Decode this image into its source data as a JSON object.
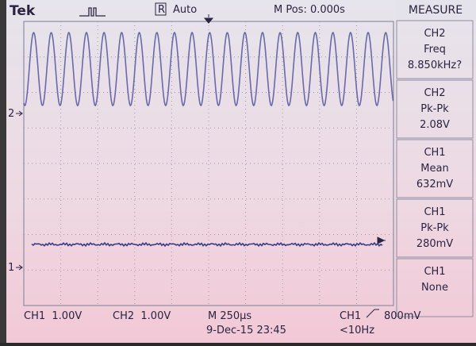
{
  "header": {
    "brand": "Tek",
    "trigger_mode": "R",
    "acquisition": "Auto",
    "position": "M Pos: 0.000s"
  },
  "measure": {
    "title": "MEASURE",
    "items": [
      {
        "source": "CH2",
        "label": "Freq",
        "value": "8.850kHz?"
      },
      {
        "source": "CH2",
        "label": "Pk-Pk",
        "value": "2.08V"
      },
      {
        "source": "CH1",
        "label": "Mean",
        "value": "632mV"
      },
      {
        "source": "CH1",
        "label": "Pk-Pk",
        "value": "280mV"
      },
      {
        "source": "CH1",
        "label": "None"
      }
    ]
  },
  "markers": {
    "ch2": "2",
    "ch1": "1"
  },
  "footer": {
    "ch1_scale": "CH1  1.00V",
    "ch2_scale": "CH2  1.00V",
    "timebase": "M 250µs",
    "trigger_source": "CH1",
    "trigger_level": "800mV",
    "datetime": "9-Dec-15 23:45",
    "trigger_freq": "<10Hz"
  }
}
